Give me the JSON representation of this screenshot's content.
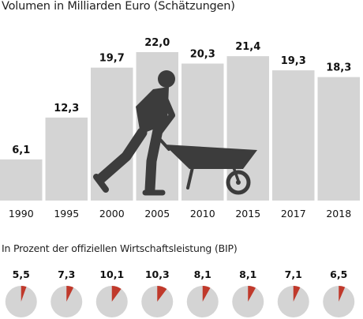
{
  "chart_data": [
    {
      "type": "bar",
      "title": "Volumen in Milliarden Euro (Schätzungen)",
      "categories": [
        "1990",
        "1995",
        "2000",
        "2005",
        "2010",
        "2015",
        "2017",
        "2018"
      ],
      "values": [
        6.1,
        12.3,
        19.7,
        22.0,
        20.3,
        21.4,
        19.3,
        18.3
      ],
      "value_labels": [
        "6,1",
        "12,3",
        "19,7",
        "22,0",
        "20,3",
        "21,4",
        "19,3",
        "18,3"
      ],
      "ylim": [
        0,
        22
      ],
      "grid": false,
      "bar_color": "#d4d4d4"
    },
    {
      "type": "pie",
      "title": "In Prozent der offiziellen Wirtschaftsleistung (BIP)",
      "categories": [
        "1990",
        "1995",
        "2000",
        "2005",
        "2010",
        "2015",
        "2017",
        "2018"
      ],
      "values": [
        5.5,
        7.3,
        10.1,
        10.3,
        8.1,
        8.1,
        7.1,
        6.5
      ],
      "value_labels": [
        "5,5",
        "7,3",
        "10,1",
        "10,3",
        "8,1",
        "8,1",
        "7,1",
        "6,5"
      ],
      "slice_color": "#c0392b",
      "rest_color": "#d4d4d4"
    }
  ],
  "illustration": {
    "icon": "worker-with-wheelbarrow-icon",
    "color": "#3c3c3c"
  }
}
